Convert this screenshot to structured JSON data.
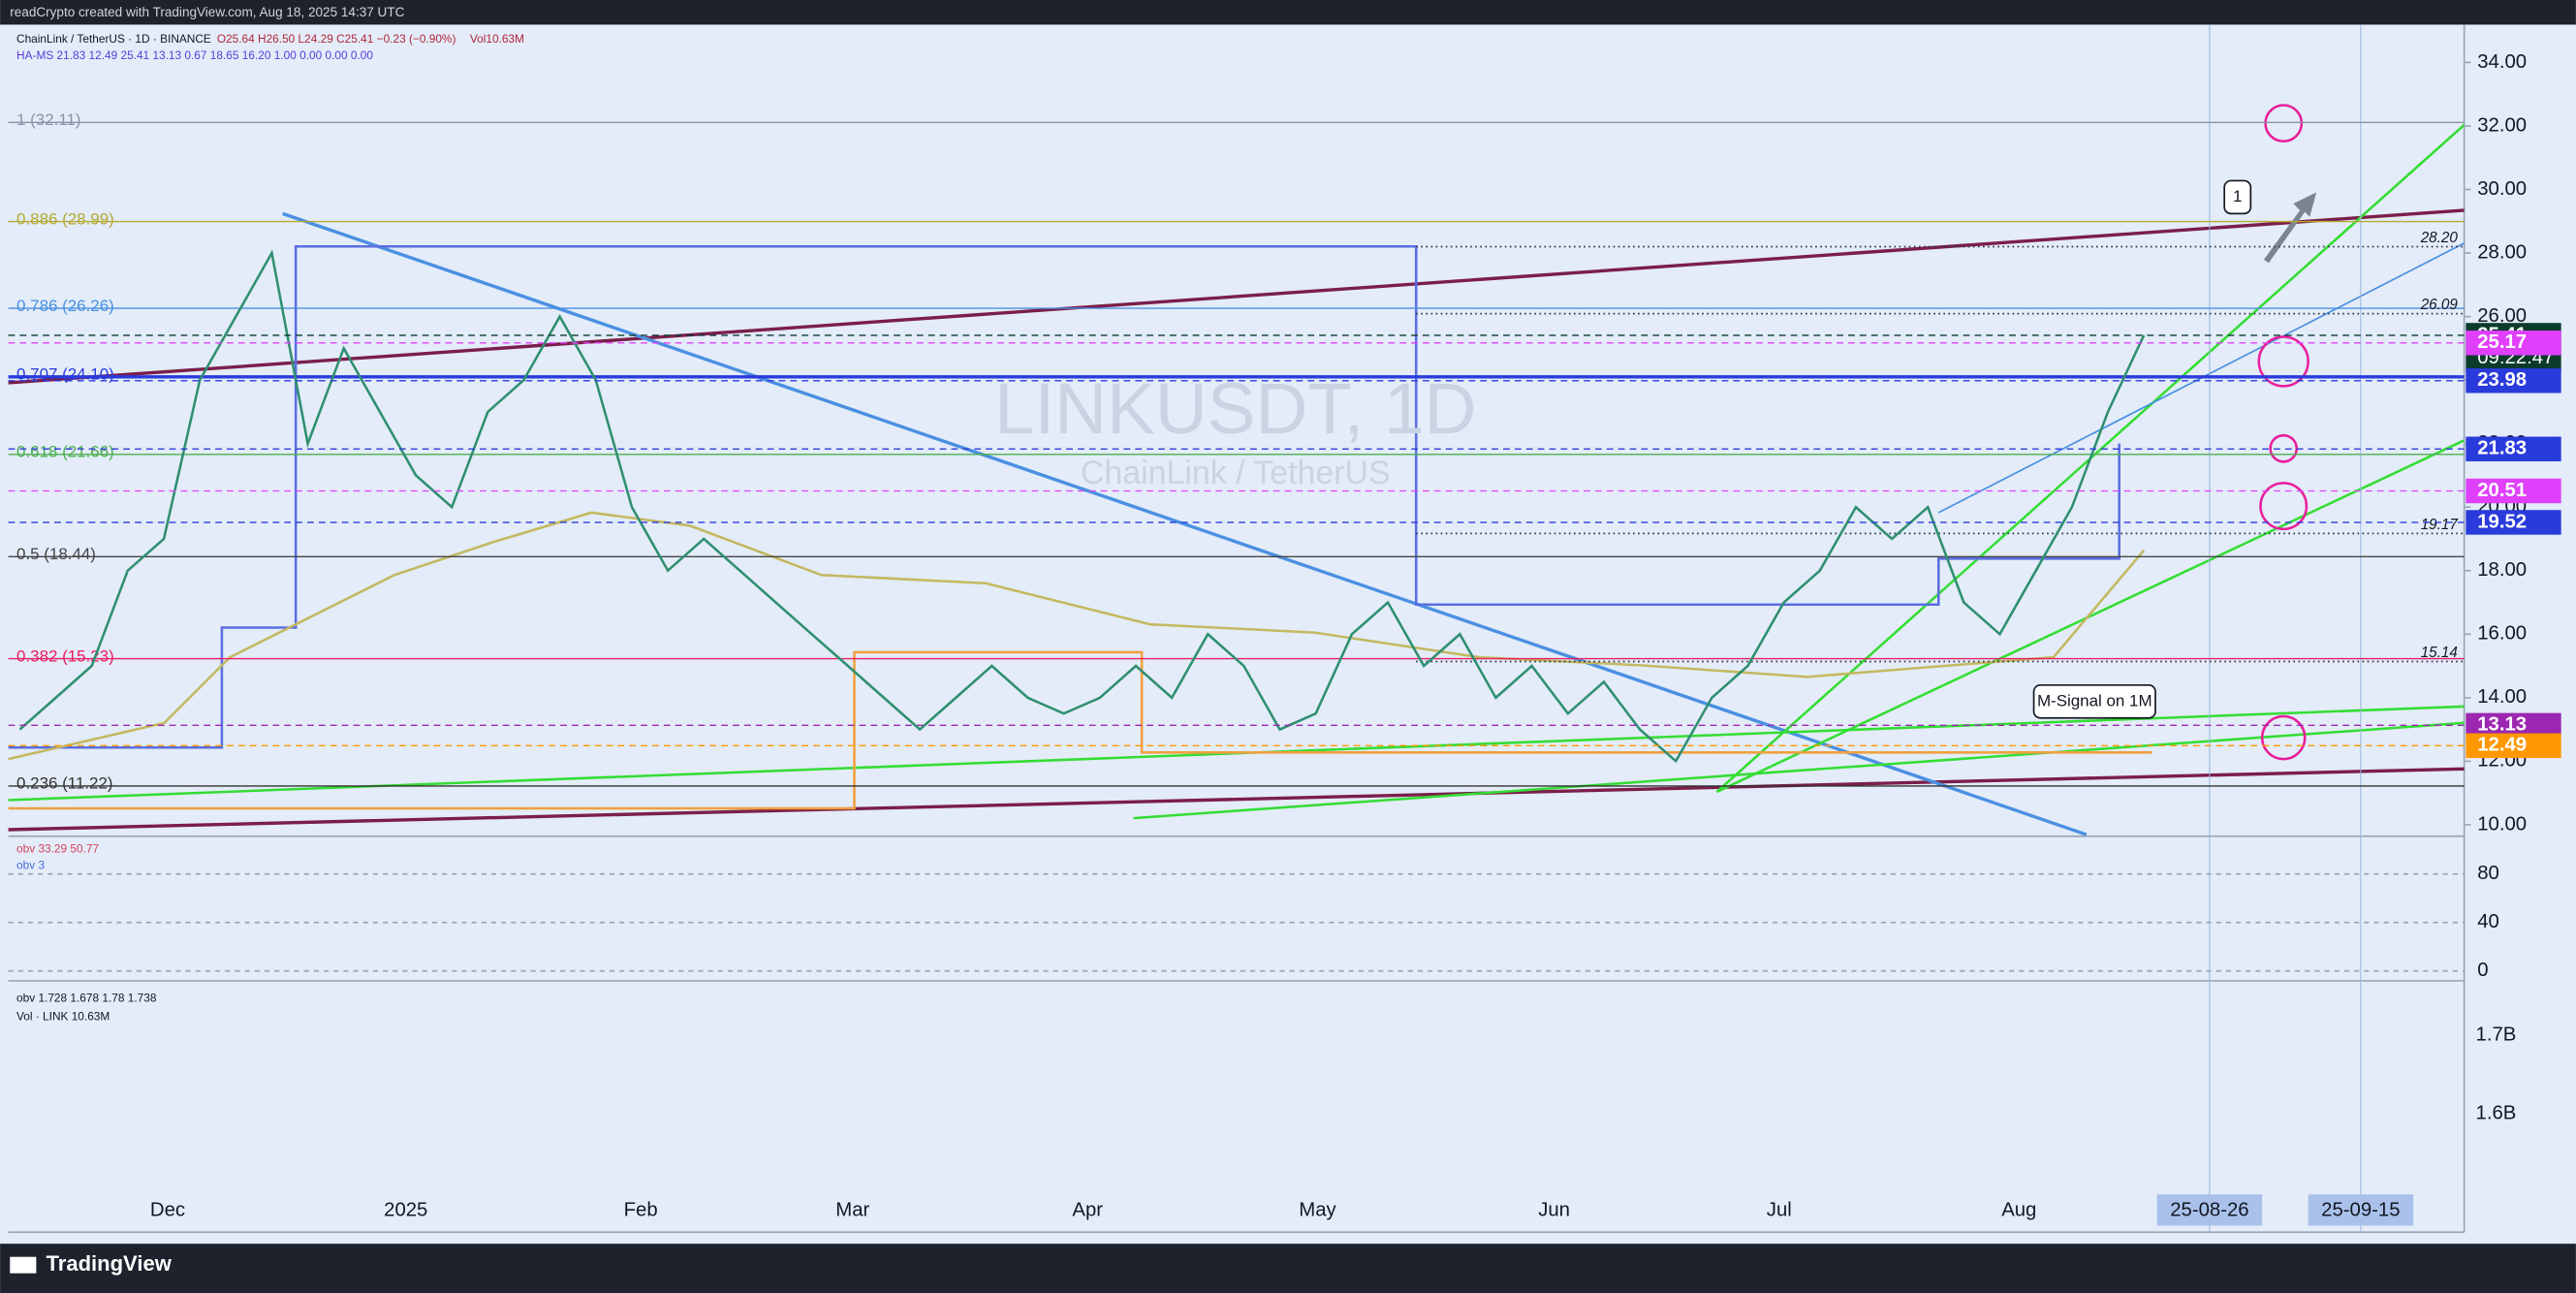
{
  "header": {
    "title": "readCrypto created with TradingView.com, Aug 18, 2025 14:37 UTC"
  },
  "legend": {
    "symbol": "ChainLink / TetherUS · 1D · BINANCE",
    "ohlc": "O25.64 H26.50 L24.29 C25.41 −0.23 (−0.90%)",
    "vol": "Vol10.63M",
    "indicator": "HA-MS 21.83 12.49 25.41 13.13 0.67 18.65 16.20 1.00 0.00 0.00 0.00"
  },
  "watermark": {
    "symbol": "LINKUSDT, 1D",
    "name": "ChainLink / TetherUS"
  },
  "price_axis": {
    "ticks": [
      {
        "value": 10,
        "label": "10.00"
      },
      {
        "value": 12,
        "label": "12.00"
      },
      {
        "value": 14,
        "label": "14.00"
      },
      {
        "value": 16,
        "label": "16.00"
      },
      {
        "value": 18,
        "label": "18.00"
      },
      {
        "value": 20,
        "label": "20.00"
      },
      {
        "value": 22,
        "label": "22.00"
      },
      {
        "value": 24,
        "label": "24.00"
      },
      {
        "value": 26,
        "label": "26.00"
      },
      {
        "value": 28,
        "label": "28.00"
      },
      {
        "value": 30,
        "label": "30.00"
      },
      {
        "value": 32,
        "label": "32.00"
      },
      {
        "value": 34,
        "label": "34.00"
      }
    ]
  },
  "price_badges": [
    {
      "value": 25.41,
      "label": "25.41",
      "color": "#0b3b2c"
    },
    {
      "value": 25.17,
      "label": "25.17",
      "color": "#e040fb"
    },
    {
      "value": 23.98,
      "label": "23.98",
      "color": "#2a3bdc"
    },
    {
      "value": 21.83,
      "label": "21.83",
      "color": "#2a3bdc"
    },
    {
      "value": 20.51,
      "label": "20.51",
      "color": "#e040fb"
    },
    {
      "value": 19.52,
      "label": "19.52",
      "color": "#2a3bdc"
    },
    {
      "value": 13.13,
      "label": "13.13",
      "color": "#9c27b0"
    },
    {
      "value": 12.49,
      "label": "12.49",
      "color": "#ff9800"
    }
  ],
  "countdown": "09:22:47",
  "fib_levels": [
    {
      "value": 32.11,
      "label": "1 (32.11)",
      "color": "#8a94a6"
    },
    {
      "value": 28.99,
      "label": "0.886 (28.99)",
      "color": "#b5a934"
    },
    {
      "value": 26.26,
      "label": "0.786 (26.26)",
      "color": "#4a90e2"
    },
    {
      "value": 24.1,
      "label": "0.707 (24.10)",
      "color": "#2a3bdc"
    },
    {
      "value": 21.66,
      "label": "0.618 (21.66)",
      "color": "#4caf50"
    },
    {
      "value": 18.44,
      "label": "0.5 (18.44)",
      "color": "#444444"
    },
    {
      "value": 15.23,
      "label": "0.382 (15.23)",
      "color": "#e91e63"
    },
    {
      "value": 11.22,
      "label": "0.236 (11.22)",
      "color": "#333333"
    }
  ],
  "line_labels": [
    {
      "value": 28.2,
      "label": "28.20"
    },
    {
      "value": 26.09,
      "label": "26.09"
    },
    {
      "value": 19.17,
      "label": "19.17"
    },
    {
      "value": 15.14,
      "label": "15.14"
    }
  ],
  "annotations": {
    "marker": "1",
    "signal": "M-Signal on 1M"
  },
  "close": [
    13,
    14,
    15,
    18,
    19,
    24,
    26,
    28,
    22,
    25,
    23,
    21,
    20,
    23,
    24,
    26,
    24,
    20,
    18,
    19,
    18,
    17,
    16,
    15,
    14,
    13,
    14,
    15,
    14,
    13.5,
    14,
    15,
    14,
    16,
    15,
    13,
    13.5,
    16,
    17,
    15,
    16,
    14,
    15,
    13.5,
    14.5,
    13,
    12,
    14,
    15,
    17,
    18,
    20,
    19,
    20,
    17,
    16,
    18,
    20,
    23,
    25.41
  ],
  "time_axis": [
    "Dec",
    "2025",
    "Feb",
    "Mar",
    "Apr",
    "May",
    "Jun",
    "Jul",
    "Aug"
  ],
  "time_badges": [
    "25-08-26",
    "25-09-15"
  ],
  "oscillator": {
    "legend": [
      "obv 33.29 50.77",
      "obv 3"
    ],
    "ticks": [
      80,
      40,
      0
    ]
  },
  "obv": {
    "legend": [
      "obv 1.728 1.678 1.78 1.738",
      "Vol · LINK 10.63M"
    ],
    "ticks": [
      "1.7B",
      "1.6B"
    ]
  },
  "footer": {
    "brand": "TradingView"
  }
}
